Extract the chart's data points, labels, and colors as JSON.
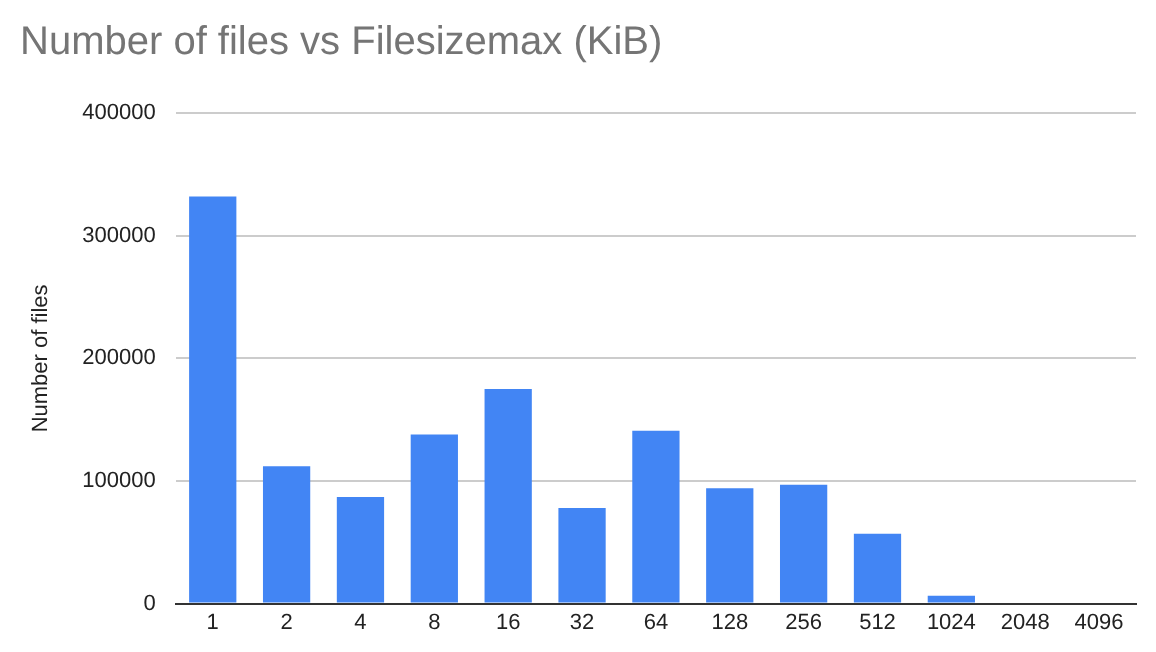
{
  "chart_data": {
    "type": "bar",
    "title": "Number of files vs Filesizemax (KiB)",
    "ylabel": "Number of files",
    "categories": [
      "1",
      "2",
      "4",
      "8",
      "16",
      "32",
      "64",
      "128",
      "256",
      "512",
      "1024",
      "2048",
      "4096"
    ],
    "values": [
      332000,
      112000,
      87000,
      138000,
      175000,
      78000,
      141000,
      94000,
      97000,
      57000,
      6500,
      0,
      0
    ],
    "color": "#4285f4",
    "ylim": [
      0,
      400000
    ],
    "yticks": [
      0,
      100000,
      200000,
      300000,
      400000
    ],
    "grid": "y",
    "legend": false
  }
}
